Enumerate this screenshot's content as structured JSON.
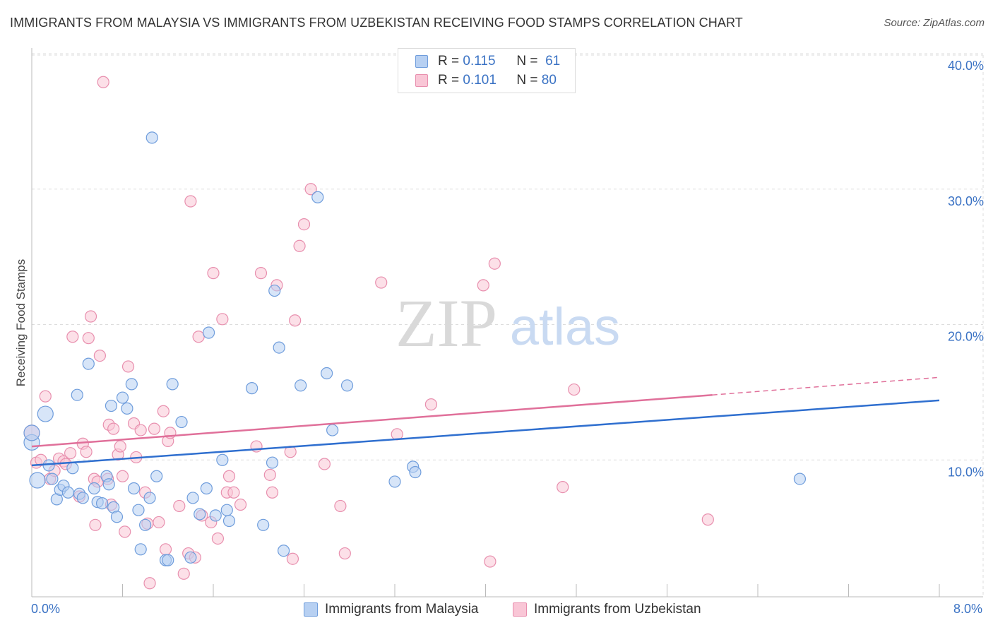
{
  "title": "IMMIGRANTS FROM MALAYSIA VS IMMIGRANTS FROM UZBEKISTAN RECEIVING FOOD STAMPS CORRELATION CHART",
  "source": "Source: ZipAtlas.com",
  "watermark": {
    "zip": "ZIP",
    "atlas": "atlas"
  },
  "legend_top": {
    "malaysia": {
      "r_label": "R =",
      "r_value": "0.115",
      "n_label": "N =",
      "n_value": "61"
    },
    "uzbekistan": {
      "r_label": "R =",
      "r_value": "0.101",
      "n_label": "N =",
      "n_value": "80"
    }
  },
  "legend_bottom": {
    "malaysia": "Immigrants from Malaysia",
    "uzbekistan": "Immigrants from Uzbekistan"
  },
  "colors": {
    "malaysia_fill": "#b7d0f2",
    "malaysia_stroke": "#6f9ddc",
    "malaysia_line": "#2f6fcf",
    "uzbekistan_fill": "#f9c6d6",
    "uzbekistan_stroke": "#e88fae",
    "uzbekistan_line": "#e0709a",
    "axis_label": "#3a72c4",
    "grid": "#dddddd"
  },
  "chart_data": {
    "type": "scatter",
    "title": "IMMIGRANTS FROM MALAYSIA VS IMMIGRANTS FROM UZBEKISTAN RECEIVING FOOD STAMPS CORRELATION CHART",
    "xlabel": "",
    "ylabel": "Receiving Food Stamps",
    "xlim": [
      0,
      8
    ],
    "ylim": [
      0,
      40
    ],
    "x_tick_labels": [
      "0.0%",
      "8.0%"
    ],
    "y_ticks": [
      10,
      20,
      30,
      40
    ],
    "y_tick_labels": [
      "10.0%",
      "20.0%",
      "30.0%",
      "40.0%"
    ],
    "grid": true,
    "legend_position": "top-center",
    "series": [
      {
        "name": "Immigrants from Malaysia",
        "points": [
          [
            0.0,
            11.3
          ],
          [
            0.05,
            8.5
          ],
          [
            0.12,
            13.4
          ],
          [
            0.15,
            9.6
          ],
          [
            0.18,
            8.6
          ],
          [
            0.22,
            7.1
          ],
          [
            0.25,
            7.8
          ],
          [
            0.28,
            8.1
          ],
          [
            0.32,
            7.6
          ],
          [
            0.36,
            9.4
          ],
          [
            0.4,
            14.8
          ],
          [
            0.42,
            7.5
          ],
          [
            0.45,
            7.2
          ],
          [
            0.5,
            17.1
          ],
          [
            0.55,
            7.9
          ],
          [
            0.58,
            6.9
          ],
          [
            0.62,
            6.8
          ],
          [
            0.66,
            8.8
          ],
          [
            0.68,
            8.2
          ],
          [
            0.7,
            14.0
          ],
          [
            0.72,
            6.5
          ],
          [
            0.75,
            5.8
          ],
          [
            0.8,
            14.6
          ],
          [
            0.84,
            13.8
          ],
          [
            0.88,
            15.6
          ],
          [
            0.9,
            7.9
          ],
          [
            0.94,
            6.3
          ],
          [
            0.96,
            3.4
          ],
          [
            1.0,
            5.2
          ],
          [
            1.04,
            7.2
          ],
          [
            1.06,
            33.8
          ],
          [
            1.1,
            8.8
          ],
          [
            1.18,
            2.6
          ],
          [
            1.2,
            2.6
          ],
          [
            1.24,
            15.6
          ],
          [
            1.32,
            12.8
          ],
          [
            1.4,
            2.8
          ],
          [
            1.42,
            7.2
          ],
          [
            1.48,
            6.0
          ],
          [
            1.54,
            7.9
          ],
          [
            1.56,
            19.4
          ],
          [
            1.62,
            5.9
          ],
          [
            1.68,
            10.0
          ],
          [
            1.72,
            6.3
          ],
          [
            1.74,
            5.5
          ],
          [
            1.94,
            15.3
          ],
          [
            2.04,
            5.2
          ],
          [
            2.12,
            9.8
          ],
          [
            2.14,
            22.5
          ],
          [
            2.18,
            18.3
          ],
          [
            2.22,
            3.3
          ],
          [
            2.37,
            15.5
          ],
          [
            2.52,
            29.4
          ],
          [
            2.6,
            16.4
          ],
          [
            2.65,
            12.2
          ],
          [
            2.78,
            15.5
          ],
          [
            3.2,
            8.4
          ],
          [
            3.36,
            9.5
          ],
          [
            3.38,
            9.1
          ],
          [
            6.77,
            8.6
          ],
          [
            0.0,
            12.0
          ]
        ],
        "trendline": {
          "x": [
            0,
            8
          ],
          "y": [
            9.6,
            14.4
          ]
        }
      },
      {
        "name": "Immigrants from Uzbekistan",
        "points": [
          [
            0.0,
            12.0
          ],
          [
            0.04,
            9.8
          ],
          [
            0.08,
            10.0
          ],
          [
            0.12,
            14.7
          ],
          [
            0.16,
            8.6
          ],
          [
            0.2,
            9.2
          ],
          [
            0.24,
            10.1
          ],
          [
            0.28,
            9.9
          ],
          [
            0.3,
            9.7
          ],
          [
            0.34,
            10.5
          ],
          [
            0.36,
            19.1
          ],
          [
            0.42,
            7.3
          ],
          [
            0.45,
            11.2
          ],
          [
            0.48,
            10.6
          ],
          [
            0.5,
            19.0
          ],
          [
            0.52,
            20.6
          ],
          [
            0.55,
            8.6
          ],
          [
            0.58,
            8.4
          ],
          [
            0.6,
            17.7
          ],
          [
            0.63,
            37.9
          ],
          [
            0.67,
            8.6
          ],
          [
            0.68,
            12.6
          ],
          [
            0.7,
            6.7
          ],
          [
            0.72,
            12.3
          ],
          [
            0.76,
            10.4
          ],
          [
            0.78,
            11.0
          ],
          [
            0.8,
            8.8
          ],
          [
            0.82,
            4.7
          ],
          [
            0.85,
            16.9
          ],
          [
            0.9,
            12.7
          ],
          [
            0.92,
            10.2
          ],
          [
            0.96,
            12.2
          ],
          [
            1.0,
            7.6
          ],
          [
            1.02,
            5.3
          ],
          [
            1.04,
            0.9
          ],
          [
            1.08,
            12.3
          ],
          [
            1.12,
            5.4
          ],
          [
            1.16,
            13.6
          ],
          [
            1.18,
            3.4
          ],
          [
            1.2,
            11.4
          ],
          [
            1.22,
            12.0
          ],
          [
            1.3,
            6.6
          ],
          [
            1.34,
            1.6
          ],
          [
            1.38,
            3.1
          ],
          [
            1.4,
            29.1
          ],
          [
            1.44,
            2.8
          ],
          [
            1.47,
            19.1
          ],
          [
            1.5,
            5.9
          ],
          [
            1.58,
            5.4
          ],
          [
            1.6,
            23.8
          ],
          [
            1.64,
            4.2
          ],
          [
            1.68,
            20.4
          ],
          [
            1.72,
            7.6
          ],
          [
            1.74,
            8.8
          ],
          [
            1.78,
            7.6
          ],
          [
            1.84,
            6.7
          ],
          [
            1.98,
            11.0
          ],
          [
            2.02,
            23.8
          ],
          [
            2.1,
            8.9
          ],
          [
            2.12,
            7.6
          ],
          [
            2.16,
            22.9
          ],
          [
            2.28,
            10.6
          ],
          [
            2.3,
            2.7
          ],
          [
            2.32,
            20.3
          ],
          [
            2.36,
            25.8
          ],
          [
            2.4,
            27.4
          ],
          [
            2.46,
            30.0
          ],
          [
            2.58,
            9.7
          ],
          [
            2.72,
            6.6
          ],
          [
            2.76,
            3.1
          ],
          [
            3.08,
            23.1
          ],
          [
            3.22,
            11.9
          ],
          [
            3.52,
            14.1
          ],
          [
            3.98,
            22.9
          ],
          [
            4.04,
            2.5
          ],
          [
            4.08,
            24.5
          ],
          [
            4.68,
            8.0
          ],
          [
            4.78,
            15.2
          ],
          [
            5.96,
            5.6
          ],
          [
            0.56,
            5.2
          ]
        ],
        "trendline": {
          "x": [
            0,
            6.0
          ],
          "y": [
            11.0,
            14.8
          ]
        },
        "trendline_dashed_extension": {
          "x": [
            6.0,
            8
          ],
          "y": [
            14.8,
            16.1
          ]
        }
      }
    ]
  }
}
